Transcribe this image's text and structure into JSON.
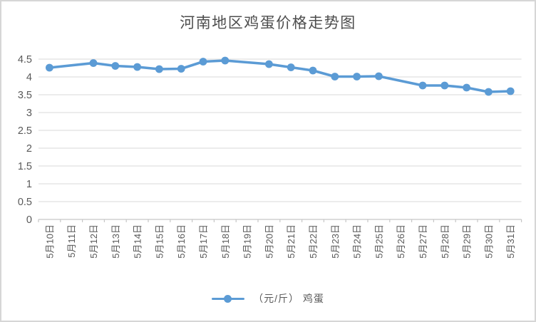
{
  "title": "河南地区鸡蛋价格走势图",
  "legend": {
    "label": "（元/斤） 鸡蛋"
  },
  "colors": {
    "series": "#5b9bd5",
    "gridline": "#d9d9d9",
    "axis": "#c6c6c6",
    "axis_text": "#595959",
    "title_text": "#4d4d4d"
  },
  "chart_data": {
    "type": "line",
    "title": "河南地区鸡蛋价格走势图",
    "xlabel": "",
    "ylabel": "",
    "categories": [
      "5月10日",
      "5月11日",
      "5月12日",
      "5月13日",
      "5月14日",
      "5月15日",
      "5月16日",
      "5月17日",
      "5月18日",
      "5月19日",
      "5月20日",
      "5月21日",
      "5月22日",
      "5月23日",
      "5月24日",
      "5月25日",
      "5月26日",
      "5月27日",
      "5月28日",
      "5月29日",
      "5月30日",
      "5月31日"
    ],
    "series": [
      {
        "name": "（元/斤）鸡蛋",
        "values": [
          4.26,
          null,
          4.39,
          4.31,
          4.28,
          4.22,
          4.23,
          4.43,
          4.46,
          null,
          4.36,
          4.27,
          4.18,
          4.01,
          4.01,
          4.02,
          null,
          3.76,
          3.76,
          3.7,
          3.58,
          3.6
        ]
      }
    ],
    "ylim": [
      0,
      4.5
    ],
    "ytick_step": 0.5,
    "yticks": [
      "0",
      "0.5",
      "1",
      "1.5",
      "2",
      "2.5",
      "3",
      "3.5",
      "4",
      "4.5"
    ],
    "grid": true,
    "legend_position": "bottom",
    "notes": "no markers on 5月11日/5月19日/5月26日 (missing data, line interpolated)"
  }
}
